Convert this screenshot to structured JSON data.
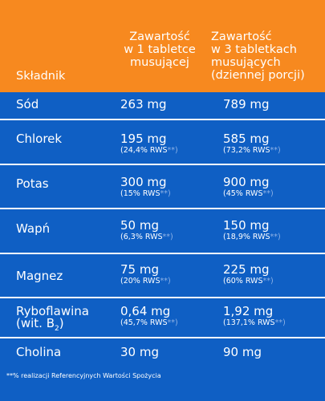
{
  "header": {
    "ingredient": "Składnik",
    "per_one_tablet": [
      "Zawartość",
      "w 1 tabletce",
      "musującej"
    ],
    "per_three_tablets": [
      "Zawartość",
      "w 3 tabletkach",
      "musujących",
      "(dziennej porcji)"
    ]
  },
  "rows": [
    {
      "name": "Sód",
      "one": "263 mg",
      "three": "789 mg"
    },
    {
      "name": "Chlorek",
      "one": "195 mg",
      "one_rws": "(24,4% RWS",
      "three": "585 mg",
      "three_rws": "(73,2% RWS"
    },
    {
      "name": "Potas",
      "one": "300 mg",
      "one_rws": "(15% RWS",
      "three": "900 mg",
      "three_rws": "(45% RWS"
    },
    {
      "name": "Wapń",
      "one": "50 mg",
      "one_rws": "(6,3% RWS",
      "three": "150 mg",
      "three_rws": "(18,9% RWS"
    },
    {
      "name": "Magnez",
      "one": "75 mg",
      "one_rws": "(20% RWS",
      "three": "225 mg",
      "three_rws": "(60% RWS"
    },
    {
      "name": "Ryboflawina",
      "name2": "(wit. B",
      "name2_sub": "2",
      "name2_end": ")",
      "one": "0,64 mg",
      "one_rws": "(45,7% RWS",
      "three": "1,92 mg",
      "three_rws": "(137,1% RWS"
    },
    {
      "name": "Cholina",
      "one": "30 mg",
      "three": "90 mg"
    }
  ],
  "stars": "**)",
  "footnote": "**% realizacji Referencyjnych Wartości Spożycia"
}
